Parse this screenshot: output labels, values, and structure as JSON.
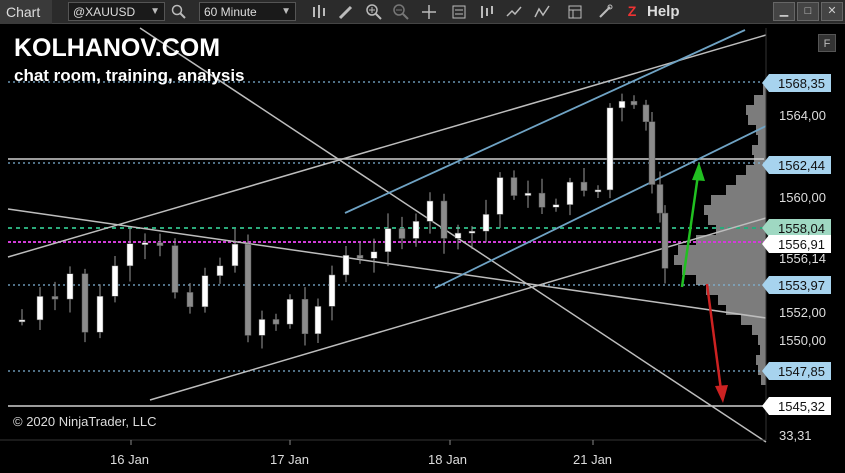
{
  "window": {
    "title": "Chart",
    "instrument": "@XAUUSD",
    "timeframe": "60 Minute",
    "help_label": "Help"
  },
  "overlay": {
    "brand": "KOLHANOV.COM",
    "subtitle": "chat room, training, analysis",
    "copyright": "© 2020 NinjaTrader, LLC",
    "f_button": "F"
  },
  "price_axis": {
    "ticks": [
      "1564,00",
      "1560,00",
      "1552,00",
      "1550,00"
    ],
    "ticks_partial": [
      "1556,14",
      "1558,04",
      "33,31"
    ],
    "labels": [
      {
        "text": "1568,35",
        "style": "blue"
      },
      {
        "text": "1562,44",
        "style": "blue"
      },
      {
        "text": "1558,04",
        "style": "green"
      },
      {
        "text": "1556,91",
        "style": "white"
      },
      {
        "text": "1553,97",
        "style": "blue"
      },
      {
        "text": "1547,85",
        "style": "blue"
      },
      {
        "text": "1545,32",
        "style": "white"
      }
    ]
  },
  "time_axis": {
    "ticks": [
      "16 Jan",
      "17 Jan",
      "18 Jan",
      "21 Jan"
    ]
  },
  "colors": {
    "background": "#000000",
    "candle_up": "#ffffff",
    "candle_down": "#8c8c8c",
    "level_blue": "#7fb4d6",
    "level_green": "#2aa97a",
    "level_magenta": "#d23cd8",
    "channel_blue": "#6fa3c4",
    "arrow_up": "#21c021",
    "arrow_down": "#cc2222",
    "volume_profile": "#8a8a8a"
  },
  "icons": [
    "search-icon",
    "bar-chart-icon",
    "draw-pencil-icon",
    "zoom-in-icon",
    "zoom-out-icon",
    "crosshair-icon",
    "data-box-icon",
    "templates-icon",
    "indicators-icon",
    "strategies-icon",
    "properties-icon",
    "tools-icon"
  ]
}
